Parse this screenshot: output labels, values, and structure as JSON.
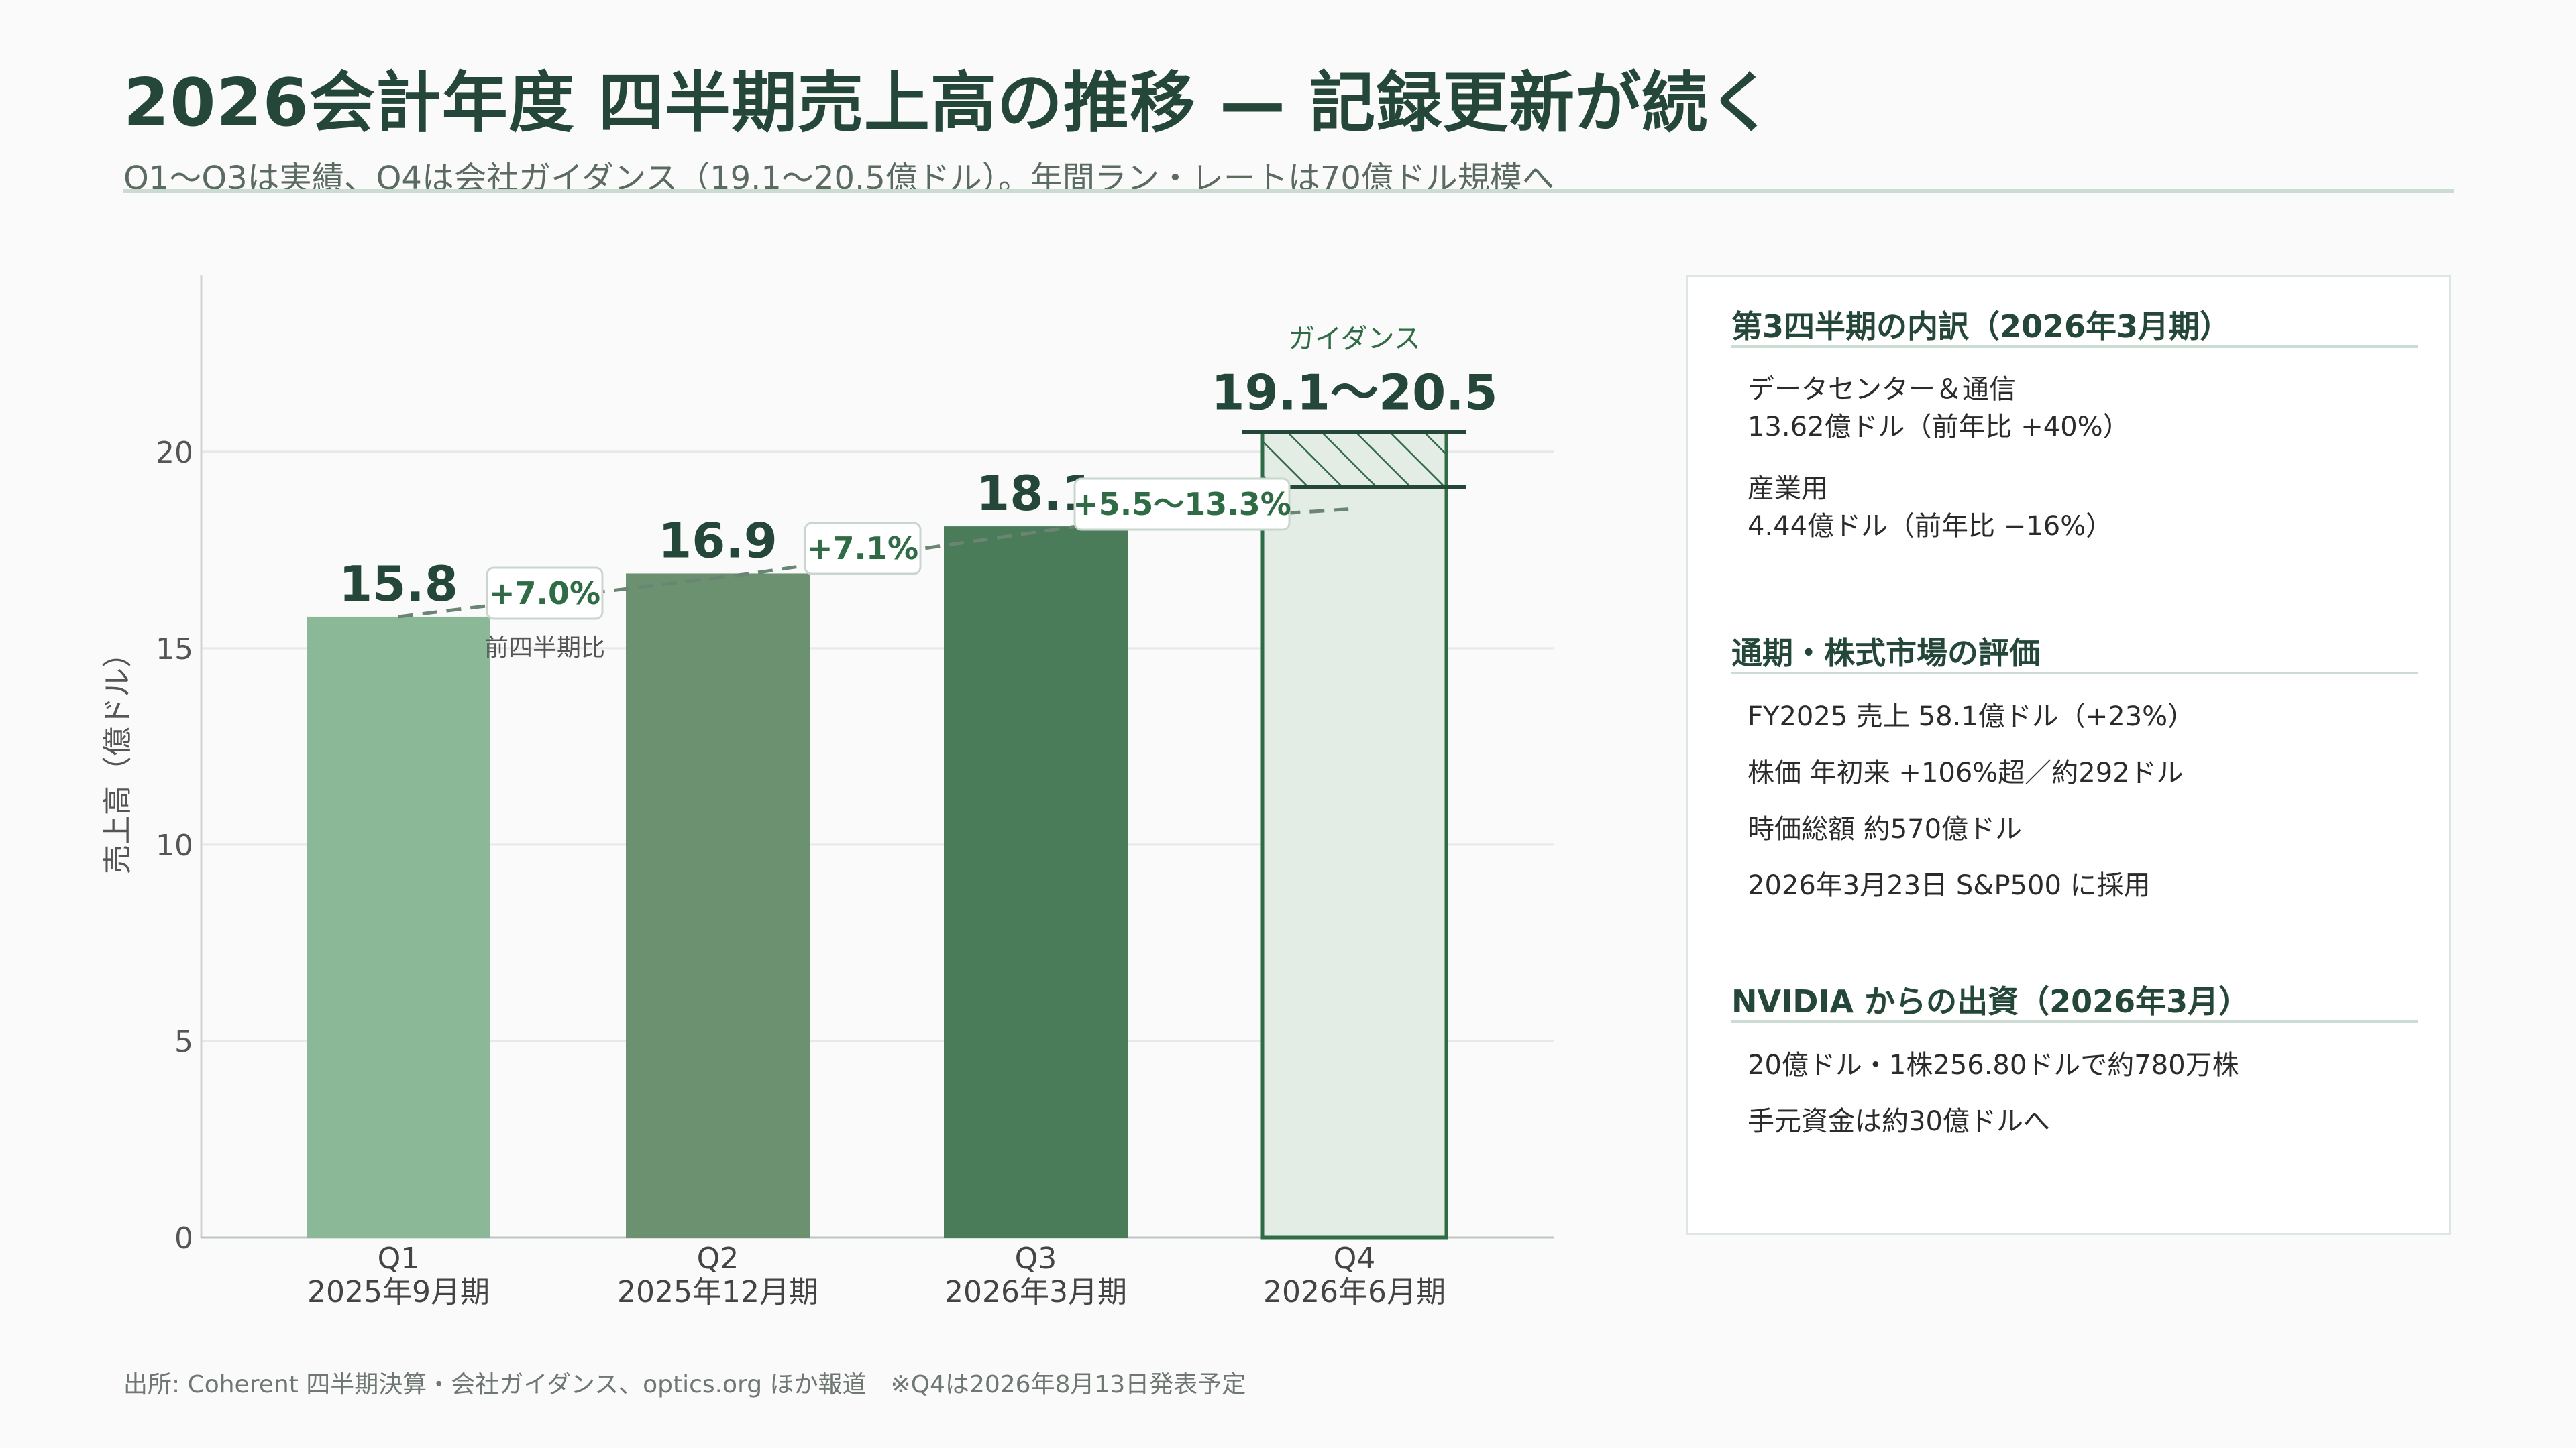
{
  "header": {
    "title": "2026会計年度 四半期売上高の推移 — 記録更新が続く",
    "subtitle": "Q1〜Q3は実績、Q4は会社ガイダンス（19.1〜20.5億ドル）。年間ラン・レートは70億ドル規模へ"
  },
  "chart_data": {
    "type": "bar",
    "ylabel": "売上高（億ドル）",
    "ylim": [
      0,
      24.5
    ],
    "yticks": [
      0,
      5,
      10,
      15,
      20
    ],
    "grid": true,
    "categories": [
      {
        "quarter": "Q1",
        "period": "2025年9月期"
      },
      {
        "quarter": "Q2",
        "period": "2025年12月期"
      },
      {
        "quarter": "Q3",
        "period": "2026年3月期"
      },
      {
        "quarter": "Q4",
        "period": "2026年6月期"
      }
    ],
    "values": [
      15.8,
      16.9,
      18.1,
      null
    ],
    "value_labels": [
      "15.8",
      "16.9",
      "18.1",
      "19.1〜20.5"
    ],
    "guidance": {
      "low": 19.1,
      "high": 20.5,
      "label": "ガイダンス"
    },
    "growth_labels": [
      "+7.0%",
      "+7.1%",
      "+5.5〜13.3%"
    ],
    "growth_caption": "前四半期比",
    "bar_colors": [
      "#8bb896",
      "#6b9171",
      "#4a7c59",
      "#e3ede5"
    ],
    "accent": "#2f6b45"
  },
  "panel": {
    "sections": [
      {
        "title": "第3四半期の内訳（2026年3月期）",
        "items": [
          [
            "データセンター＆通信",
            "13.62億ドル（前年比 +40%）"
          ],
          [
            "産業用",
            "4.44億ドル（前年比 −16%）"
          ]
        ]
      },
      {
        "title": "通期・株式市場の評価",
        "items": [
          [
            "FY2025 売上 58.1億ドル（+23%）"
          ],
          [
            "株価 年初来 +106%超／約292ドル"
          ],
          [
            "時価総額 約570億ドル"
          ],
          [
            "2026年3月23日 S&P500 に採用"
          ]
        ]
      },
      {
        "title": "NVIDIA からの出資（2026年3月）",
        "items": [
          [
            "20億ドル・1株256.80ドルで約780万株"
          ],
          [
            "手元資金は約30億ドルへ"
          ]
        ]
      }
    ]
  },
  "footer": {
    "source": "出所: Coherent 四半期決算・会社ガイダンス、optics.org ほか報道　※Q4は2026年8月13日発表予定"
  }
}
